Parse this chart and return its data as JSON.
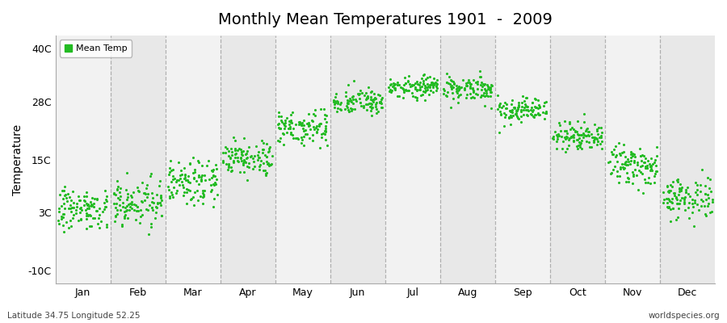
{
  "title": "Monthly Mean Temperatures 1901  -  2009",
  "ylabel": "Temperature",
  "footer_left": "Latitude 34.75 Longitude 52.25",
  "footer_right": "worldspecies.org",
  "legend_label": "Mean Temp",
  "dot_color": "#22bb22",
  "bg_color": "#f2f2f2",
  "band_light": "#f2f2f2",
  "band_dark": "#e8e8e8",
  "ytick_labels": [
    "-10C",
    "3C",
    "15C",
    "28C",
    "40C"
  ],
  "ytick_values": [
    -10,
    3,
    15,
    28,
    40
  ],
  "months": [
    "Jan",
    "Feb",
    "Mar",
    "Apr",
    "May",
    "Jun",
    "Jul",
    "Aug",
    "Sep",
    "Oct",
    "Nov",
    "Dec"
  ],
  "monthly_means": [
    3.8,
    5.5,
    10.5,
    15.5,
    22.5,
    28.0,
    31.5,
    31.0,
    26.0,
    20.5,
    13.5,
    6.5
  ],
  "monthly_stds": [
    2.2,
    2.8,
    2.5,
    1.8,
    2.0,
    1.5,
    1.2,
    1.5,
    1.5,
    1.8,
    2.0,
    2.5
  ],
  "n_years": 109,
  "ylim": [
    -13,
    43
  ],
  "title_fontsize": 14,
  "axis_fontsize": 10,
  "tick_fontsize": 9,
  "vline_color": "#888888",
  "vline_alpha": 0.6
}
